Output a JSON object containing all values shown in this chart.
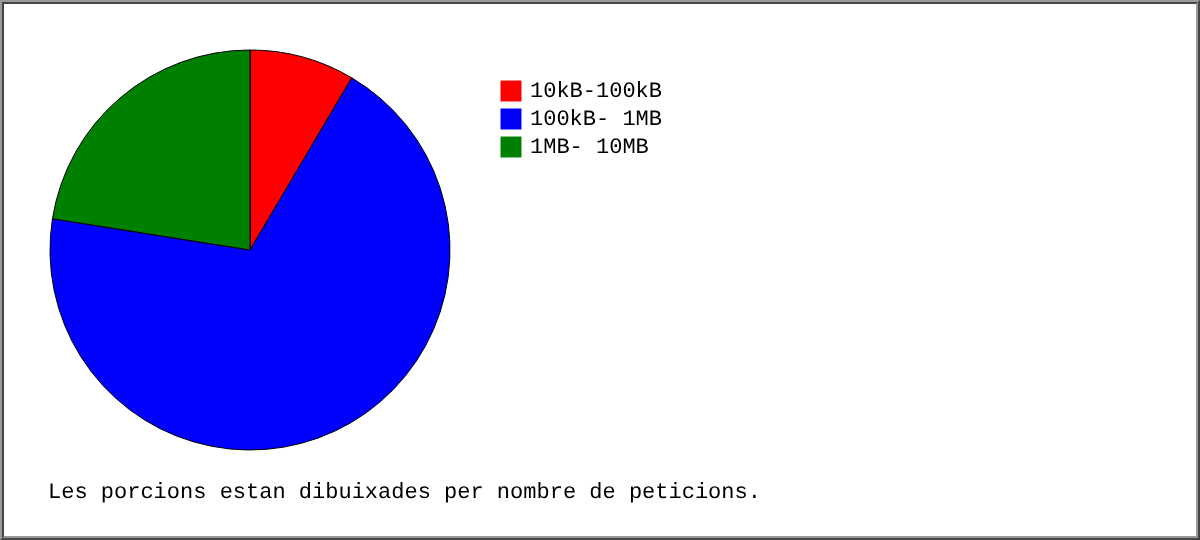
{
  "chart_data": {
    "type": "pie",
    "categories": [
      "10kB-100kB",
      "100kB- 1MB",
      "1MB- 10MB"
    ],
    "values": [
      8.5,
      69,
      22.5
    ],
    "colors": [
      "#ff0000",
      "#0000ff",
      "#008000"
    ],
    "legend": "top right",
    "annotations": [
      "Les porcions estan dibuixades per nombre de peticions."
    ]
  }
}
